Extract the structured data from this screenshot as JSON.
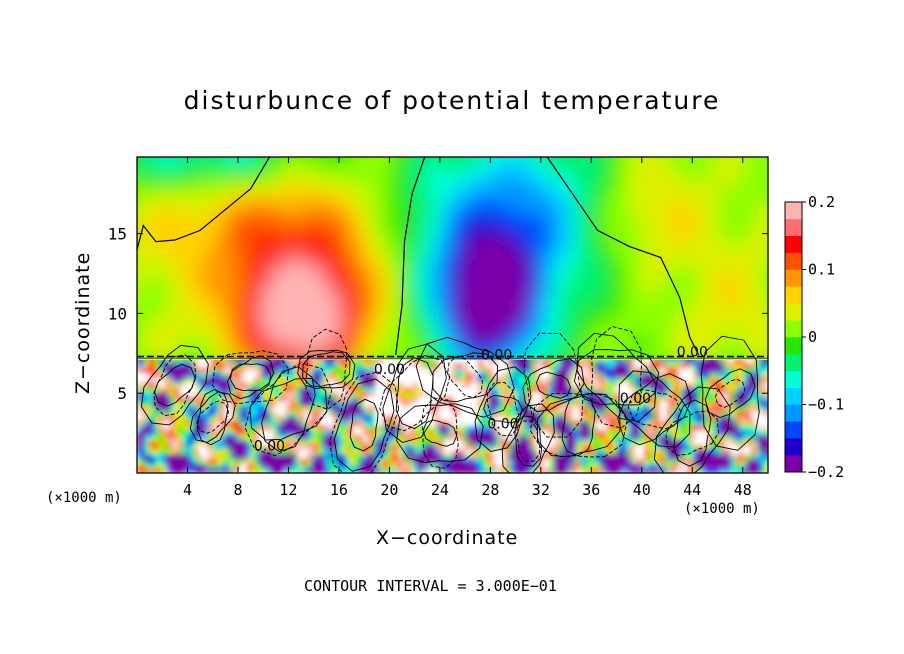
{
  "chart_data": {
    "type": "heatmap",
    "title": "disturbunce of potential temperature",
    "xlabel": "X−coordinate",
    "ylabel": "Z−coordinate",
    "x_unit_left": "(×1000 m)",
    "x_unit_right": "(×1000 m)",
    "x_ticks": [
      4,
      8,
      12,
      16,
      20,
      24,
      28,
      32,
      36,
      40,
      44,
      48
    ],
    "y_ticks": [
      5,
      10,
      15
    ],
    "xlim": [
      0,
      50
    ],
    "ylim": [
      0,
      19.8
    ],
    "colorbar": {
      "ticks": [
        "0.2",
        "0.1",
        "0",
        "−0.1",
        "−0.2"
      ],
      "tick_values": [
        0.2,
        0.1,
        0,
        -0.1,
        -0.2
      ],
      "range": [
        -0.2,
        0.2
      ]
    },
    "contour_labels": [
      "0.00",
      "0.00",
      "0.00",
      "0.00",
      "0.00",
      "0.00"
    ],
    "footer": "CONTOUR INTERVAL = 3.000E−01",
    "features": [
      {
        "kind": "warm",
        "x": 13,
        "z": 9.5,
        "amp": 0.17
      },
      {
        "kind": "cold",
        "x": 28,
        "z": 10.5,
        "amp": -0.2
      },
      {
        "kind": "boundary",
        "z": 7.3
      }
    ]
  },
  "colors": {
    "colormap": [
      "#7b00a8",
      "#1e00c8",
      "#0046ff",
      "#0096ff",
      "#00d2ff",
      "#00ffd2",
      "#00f070",
      "#28e600",
      "#8cff00",
      "#dcf000",
      "#ffd200",
      "#ff9600",
      "#ff5000",
      "#ff0000",
      "#ff6e6e",
      "#ffb4b4"
    ],
    "field_background": "#33e34d"
  }
}
